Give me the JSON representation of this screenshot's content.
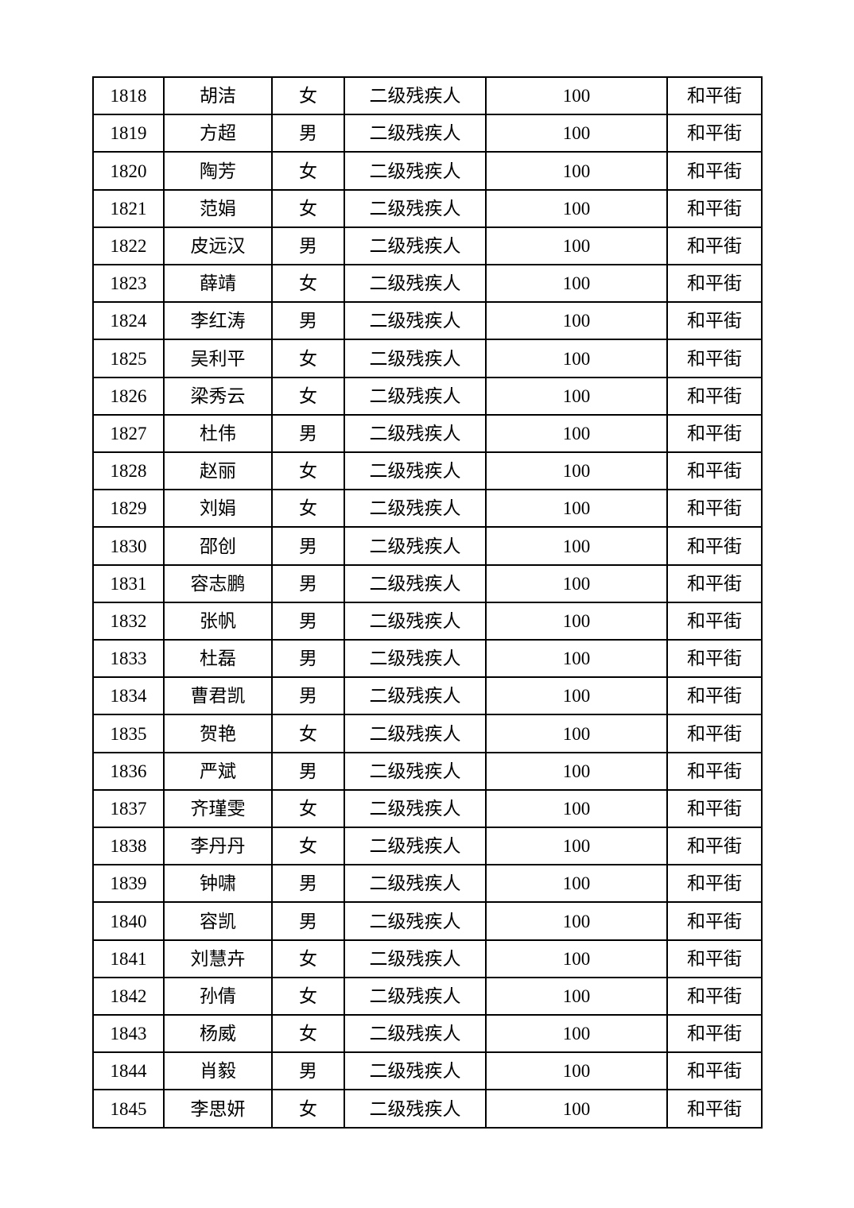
{
  "page": {
    "background": "#ffffff",
    "text_color": "#000000",
    "table_border_color": "#000000"
  },
  "table": {
    "rows": [
      [
        "1818",
        "胡洁",
        "女",
        "二级残疾人",
        "100",
        "和平街"
      ],
      [
        "1819",
        "方超",
        "男",
        "二级残疾人",
        "100",
        "和平街"
      ],
      [
        "1820",
        "陶芳",
        "女",
        "二级残疾人",
        "100",
        "和平街"
      ],
      [
        "1821",
        "范娟",
        "女",
        "二级残疾人",
        "100",
        "和平街"
      ],
      [
        "1822",
        "皮远汉",
        "男",
        "二级残疾人",
        "100",
        "和平街"
      ],
      [
        "1823",
        "薛靖",
        "女",
        "二级残疾人",
        "100",
        "和平街"
      ],
      [
        "1824",
        "李红涛",
        "男",
        "二级残疾人",
        "100",
        "和平街"
      ],
      [
        "1825",
        "吴利平",
        "女",
        "二级残疾人",
        "100",
        "和平街"
      ],
      [
        "1826",
        "梁秀云",
        "女",
        "二级残疾人",
        "100",
        "和平街"
      ],
      [
        "1827",
        "杜伟",
        "男",
        "二级残疾人",
        "100",
        "和平街"
      ],
      [
        "1828",
        "赵丽",
        "女",
        "二级残疾人",
        "100",
        "和平街"
      ],
      [
        "1829",
        "刘娟",
        "女",
        "二级残疾人",
        "100",
        "和平街"
      ],
      [
        "1830",
        "邵创",
        "男",
        "二级残疾人",
        "100",
        "和平街"
      ],
      [
        "1831",
        "容志鹏",
        "男",
        "二级残疾人",
        "100",
        "和平街"
      ],
      [
        "1832",
        "张帆",
        "男",
        "二级残疾人",
        "100",
        "和平街"
      ],
      [
        "1833",
        "杜磊",
        "男",
        "二级残疾人",
        "100",
        "和平街"
      ],
      [
        "1834",
        "曹君凯",
        "男",
        "二级残疾人",
        "100",
        "和平街"
      ],
      [
        "1835",
        "贺艳",
        "女",
        "二级残疾人",
        "100",
        "和平街"
      ],
      [
        "1836",
        "严斌",
        "男",
        "二级残疾人",
        "100",
        "和平街"
      ],
      [
        "1837",
        "齐瑾雯",
        "女",
        "二级残疾人",
        "100",
        "和平街"
      ],
      [
        "1838",
        "李丹丹",
        "女",
        "二级残疾人",
        "100",
        "和平街"
      ],
      [
        "1839",
        "钟啸",
        "男",
        "二级残疾人",
        "100",
        "和平街"
      ],
      [
        "1840",
        "容凯",
        "男",
        "二级残疾人",
        "100",
        "和平街"
      ],
      [
        "1841",
        "刘慧卉",
        "女",
        "二级残疾人",
        "100",
        "和平街"
      ],
      [
        "1842",
        "孙倩",
        "女",
        "二级残疾人",
        "100",
        "和平街"
      ],
      [
        "1843",
        "杨威",
        "女",
        "二级残疾人",
        "100",
        "和平街"
      ],
      [
        "1844",
        "肖毅",
        "男",
        "二级残疾人",
        "100",
        "和平街"
      ],
      [
        "1845",
        "李思妍",
        "女",
        "二级残疾人",
        "100",
        "和平街"
      ]
    ]
  }
}
